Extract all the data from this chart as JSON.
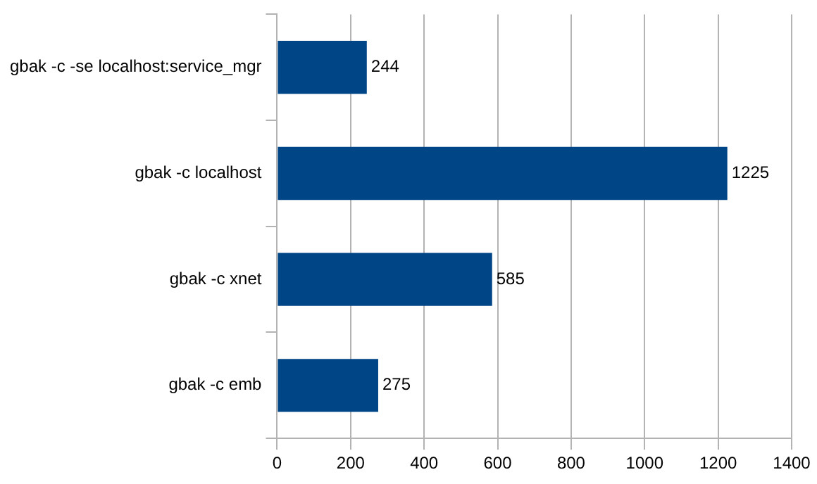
{
  "chart_data": {
    "type": "bar",
    "orientation": "horizontal",
    "categories": [
      "gbak -c -se localhost:service_mgr",
      "gbak -c localhost",
      "gbak -c xnet",
      "gbak -c emb"
    ],
    "values": [
      244,
      1225,
      585,
      275
    ],
    "color": "#004586",
    "xlim": [
      0,
      1400
    ],
    "xticks": [
      0,
      200,
      400,
      600,
      800,
      1000,
      1200,
      1400
    ],
    "grid": "x",
    "data_labels": true
  }
}
